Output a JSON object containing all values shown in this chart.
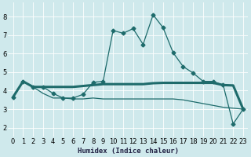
{
  "xlabel": "Humidex (Indice chaleur)",
  "bg_color": "#cfe9ec",
  "grid_color": "#ffffff",
  "line_color": "#1e6b6b",
  "xlim": [
    -0.5,
    23.5
  ],
  "ylim": [
    1.5,
    8.75
  ],
  "yticks": [
    2,
    3,
    4,
    5,
    6,
    7,
    8
  ],
  "xticks": [
    0,
    1,
    2,
    3,
    4,
    5,
    6,
    7,
    8,
    9,
    10,
    11,
    12,
    13,
    14,
    15,
    16,
    17,
    18,
    19,
    20,
    21,
    22,
    23
  ],
  "x": [
    0,
    1,
    2,
    3,
    4,
    5,
    6,
    7,
    8,
    9,
    10,
    11,
    12,
    13,
    14,
    15,
    16,
    17,
    18,
    19,
    20,
    21,
    22,
    23
  ],
  "y_top": [
    3.65,
    4.5,
    4.2,
    4.2,
    3.85,
    3.6,
    3.6,
    3.8,
    4.45,
    4.5,
    7.25,
    7.1,
    7.35,
    6.5,
    8.1,
    7.4,
    6.05,
    5.3,
    4.95,
    4.5,
    4.5,
    4.3,
    2.2,
    3.0
  ],
  "y_mean": [
    3.65,
    4.5,
    4.2,
    4.2,
    4.2,
    4.2,
    4.2,
    4.25,
    4.3,
    4.35,
    4.35,
    4.35,
    4.35,
    4.35,
    4.4,
    4.42,
    4.42,
    4.42,
    4.42,
    4.42,
    4.42,
    4.3,
    4.28,
    3.0
  ],
  "y_bot": [
    3.65,
    4.5,
    4.2,
    3.85,
    3.6,
    3.6,
    3.55,
    3.55,
    3.6,
    3.55,
    3.55,
    3.55,
    3.55,
    3.55,
    3.55,
    3.55,
    3.55,
    3.5,
    3.4,
    3.3,
    3.2,
    3.1,
    3.05,
    3.0
  ],
  "lw_thin": 0.9,
  "lw_thick": 2.2,
  "ms": 2.5,
  "tick_fontsize": 6.0,
  "xlabel_fontsize": 6.5
}
